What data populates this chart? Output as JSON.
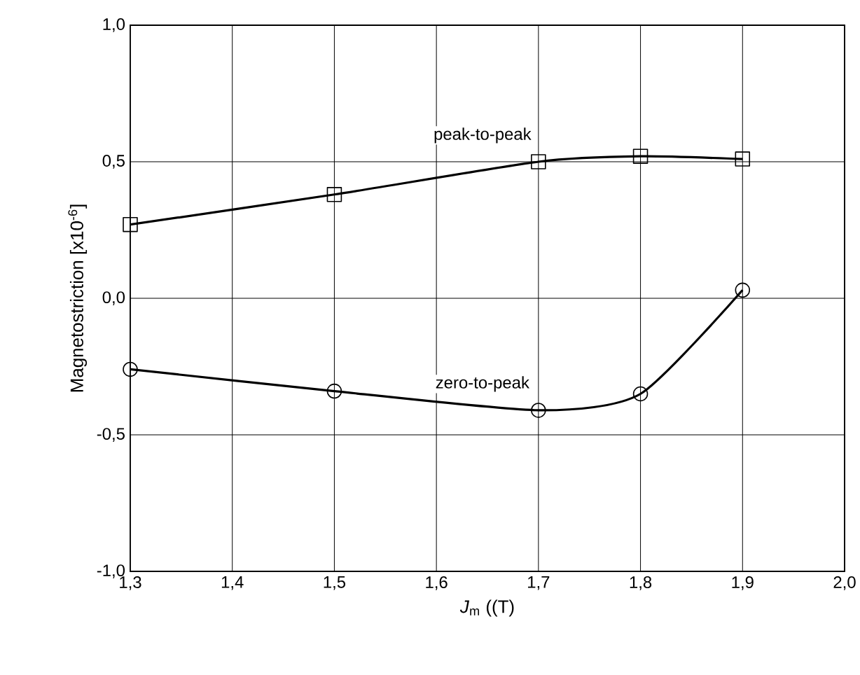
{
  "chart_data": {
    "type": "line",
    "xlabel": "*J*$_{m}$  ((T)",
    "ylabel": "Magnetostriction  [x10$^{-6}$]",
    "x": [
      1.3,
      1.5,
      1.7,
      1.8,
      1.9
    ],
    "series": [
      {
        "name": "peak-to-peak",
        "color": "#000000",
        "marker": "square",
        "values": [
          0.27,
          0.38,
          0.5,
          0.52,
          0.51
        ]
      },
      {
        "name": "zero-to-peak",
        "color": "#000000",
        "marker": "circle",
        "values": [
          -0.26,
          -0.34,
          -0.41,
          -0.35,
          0.03
        ]
      }
    ],
    "xlim": [
      1.3,
      2.0
    ],
    "ylim": [
      -1.0,
      1.0
    ],
    "xticks": [
      {
        "value": 1.3,
        "label": "1,3"
      },
      {
        "value": 1.4,
        "label": "1,4"
      },
      {
        "value": 1.5,
        "label": "1,5"
      },
      {
        "value": 1.6,
        "label": "1,6"
      },
      {
        "value": 1.7,
        "label": "1,7"
      },
      {
        "value": 1.8,
        "label": "1,8"
      },
      {
        "value": 1.9,
        "label": "1,9"
      },
      {
        "value": 2.0,
        "label": "2,0"
      }
    ],
    "yticks": [
      {
        "value": -1.0,
        "label": "-1,0"
      },
      {
        "value": -0.5,
        "label": "-0,5"
      },
      {
        "value": 0,
        "label": "0,0"
      },
      {
        "value": 0.5,
        "label": "0,5"
      },
      {
        "value": 1.0,
        "label": "1,0"
      }
    ],
    "grid": true,
    "line_style": "solid"
  }
}
